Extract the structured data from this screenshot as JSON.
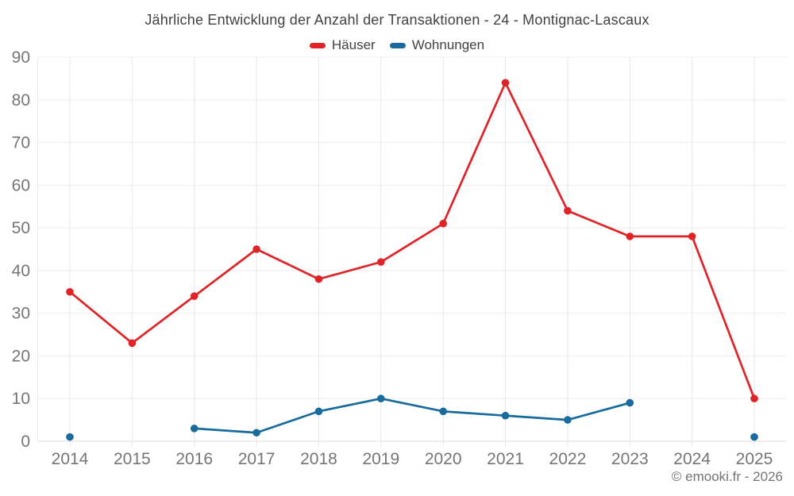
{
  "chart_data": {
    "type": "line",
    "title": "Jährliche Entwicklung der Anzahl der Transaktionen - 24 - Montignac-Lascaux",
    "categories": [
      "2014",
      "2015",
      "2016",
      "2017",
      "2018",
      "2019",
      "2020",
      "2021",
      "2022",
      "2023",
      "2024",
      "2025"
    ],
    "series": [
      {
        "name": "Häuser",
        "color": "#e02327",
        "values": [
          35,
          23,
          34,
          45,
          38,
          42,
          51,
          84,
          54,
          48,
          48,
          10
        ]
      },
      {
        "name": "Wohnungen",
        "color": "#186b9c",
        "values": [
          1,
          null,
          3,
          2,
          7,
          10,
          7,
          6,
          5,
          9,
          null,
          1
        ]
      }
    ],
    "xlabel": "",
    "ylabel": "",
    "yaxis": {
      "min": 0,
      "max": 90,
      "step": 10,
      "ticks": [
        0,
        10,
        20,
        30,
        40,
        50,
        60,
        70,
        80,
        90
      ]
    },
    "grid": true,
    "legend_position": "top",
    "footer": "© emooki.fr - 2026"
  },
  "colors": {
    "background": "#ffffff",
    "title_text": "#424242",
    "legend_text": "#424242",
    "axis_label": "#757575",
    "gridline": "#ededed",
    "gridline_vertical": "#e7e7e7",
    "axis_line": "#dcdcdc"
  }
}
